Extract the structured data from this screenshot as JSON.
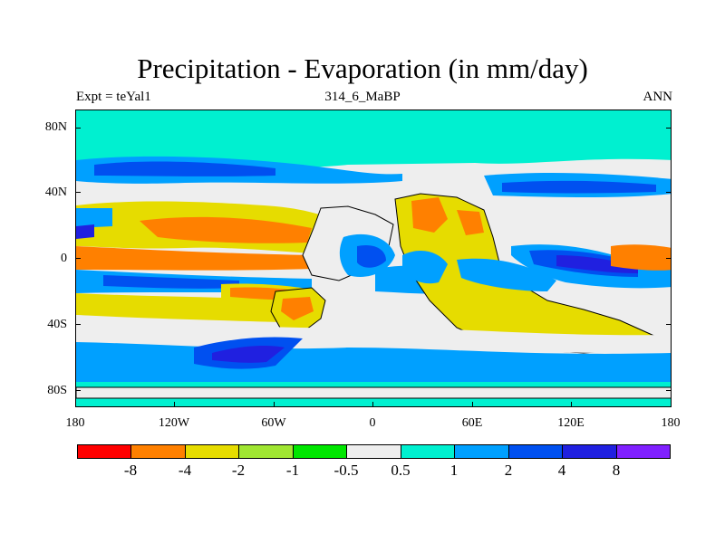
{
  "title": "Precipitation - Evaporation (in mm/day)",
  "subtitle_left": "Expt = teYal1",
  "subtitle_center": "314_6_MaBP",
  "subtitle_right": "ANN",
  "y_labels": [
    "80N",
    "40N",
    "0",
    "40S",
    "80S"
  ],
  "x_labels": [
    "180",
    "120W",
    "60W",
    "0",
    "60E",
    "120E",
    "180"
  ],
  "colors": {
    "frame": "#000000",
    "background": "#ffffff",
    "ocean_neutral": "#eeeeee"
  },
  "legend": {
    "labels": [
      "-8",
      "-4",
      "-2",
      "-1",
      "-0.5",
      "0.5",
      "1",
      "2",
      "4",
      "8"
    ],
    "colors": [
      "#ff0000",
      "#ff8000",
      "#e6dc00",
      "#a0e632",
      "#00e600",
      "#eeeeee",
      "#00f0d0",
      "#00a0ff",
      "#0050f0",
      "#2020e0",
      "#8020ff"
    ]
  },
  "map_data": {
    "type": "filled_contour_map",
    "variable": "Precipitation - Evaporation",
    "units": "mm/day",
    "lon_range": [
      -180,
      180
    ],
    "lat_range": [
      -90,
      90
    ]
  }
}
